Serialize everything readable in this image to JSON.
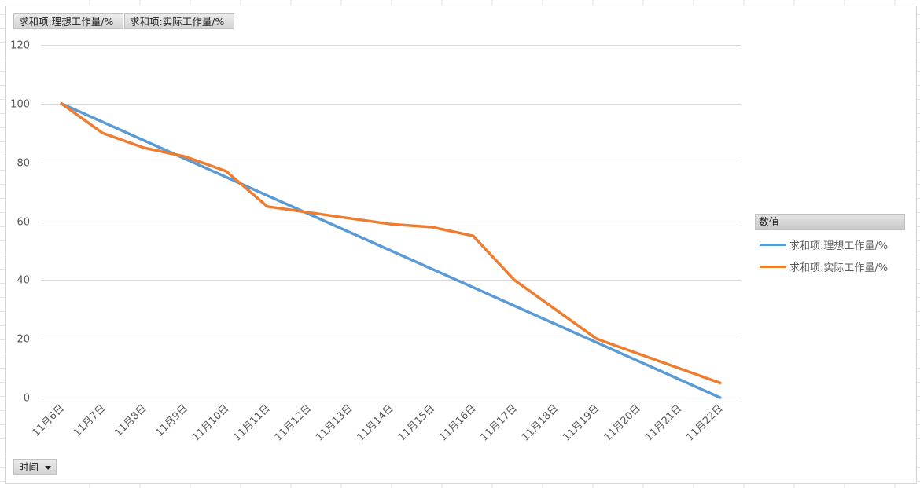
{
  "pivot": {
    "value_fields": [
      "求和项:理想工作量/%",
      "求和项:实际工作量/%"
    ],
    "axis_field": "时间",
    "legend_title": "数值"
  },
  "colors": {
    "ideal": "#5b9bd5",
    "actual": "#ed7d31",
    "gridline": "#d9d9d9",
    "sheet_grid": "#e2e2e2"
  },
  "icons": {
    "axis_dropdown": "chevron-down-icon"
  },
  "chart_data": {
    "type": "line",
    "title": "",
    "xlabel": "",
    "ylabel": "",
    "ylim": [
      0,
      120
    ],
    "yticks": [
      0,
      20,
      40,
      60,
      80,
      100,
      120
    ],
    "grid": true,
    "legend_position": "right",
    "categories": [
      "11月6日",
      "11月7日",
      "11月8日",
      "11月9日",
      "11月10日",
      "11月11日",
      "11月12日",
      "11月13日",
      "11月14日",
      "11月15日",
      "11月16日",
      "11月17日",
      "11月18日",
      "11月19日",
      "11月20日",
      "11月21日",
      "11月22日"
    ],
    "series": [
      {
        "name": "求和项:理想工作量/%",
        "values": [
          100,
          93.75,
          87.5,
          81.25,
          75,
          68.75,
          62.5,
          56.25,
          50,
          43.75,
          37.5,
          31.25,
          25,
          18.75,
          12.5,
          6.25,
          0
        ]
      },
      {
        "name": "求和项:实际工作量/%",
        "values": [
          100,
          90,
          85,
          82,
          77,
          65,
          63,
          61,
          59,
          58,
          55,
          40,
          30,
          20,
          15,
          10,
          5
        ]
      }
    ]
  }
}
